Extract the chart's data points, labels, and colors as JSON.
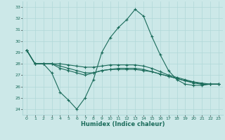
{
  "xlabel": "Humidex (Indice chaleur)",
  "ylabel": "",
  "bg_color": "#cce8e8",
  "line_color": "#1a6b5a",
  "grid_color": "#b0d8d8",
  "xlim": [
    -0.5,
    23.5
  ],
  "ylim": [
    23.5,
    33.5
  ],
  "yticks": [
    24,
    25,
    26,
    27,
    28,
    29,
    30,
    31,
    32,
    33
  ],
  "xticks": [
    0,
    1,
    2,
    3,
    4,
    5,
    6,
    7,
    8,
    9,
    10,
    11,
    12,
    13,
    14,
    15,
    16,
    17,
    18,
    19,
    20,
    21,
    22,
    23
  ],
  "series": [
    [
      29.2,
      28.0,
      28.0,
      27.2,
      25.5,
      24.8,
      24.0,
      25.0,
      26.6,
      29.0,
      30.3,
      31.2,
      31.9,
      32.8,
      32.2,
      30.4,
      28.8,
      27.4,
      26.6,
      26.2,
      26.1,
      26.1,
      26.2,
      26.2
    ],
    [
      29.2,
      28.0,
      28.0,
      28.0,
      27.6,
      27.4,
      27.2,
      27.0,
      27.2,
      27.4,
      27.5,
      27.5,
      27.5,
      27.5,
      27.4,
      27.3,
      27.1,
      26.9,
      26.7,
      26.5,
      26.4,
      26.2,
      26.2,
      26.2
    ],
    [
      29.2,
      28.0,
      28.0,
      28.0,
      27.8,
      27.6,
      27.4,
      27.2,
      27.2,
      27.4,
      27.5,
      27.6,
      27.6,
      27.6,
      27.5,
      27.3,
      27.1,
      26.9,
      26.7,
      26.5,
      26.3,
      26.2,
      26.2,
      26.2
    ],
    [
      29.2,
      28.0,
      28.0,
      28.0,
      28.0,
      27.9,
      27.8,
      27.7,
      27.7,
      27.8,
      27.9,
      27.9,
      27.9,
      27.9,
      27.8,
      27.6,
      27.3,
      27.0,
      26.8,
      26.6,
      26.4,
      26.3,
      26.2,
      26.2
    ]
  ]
}
